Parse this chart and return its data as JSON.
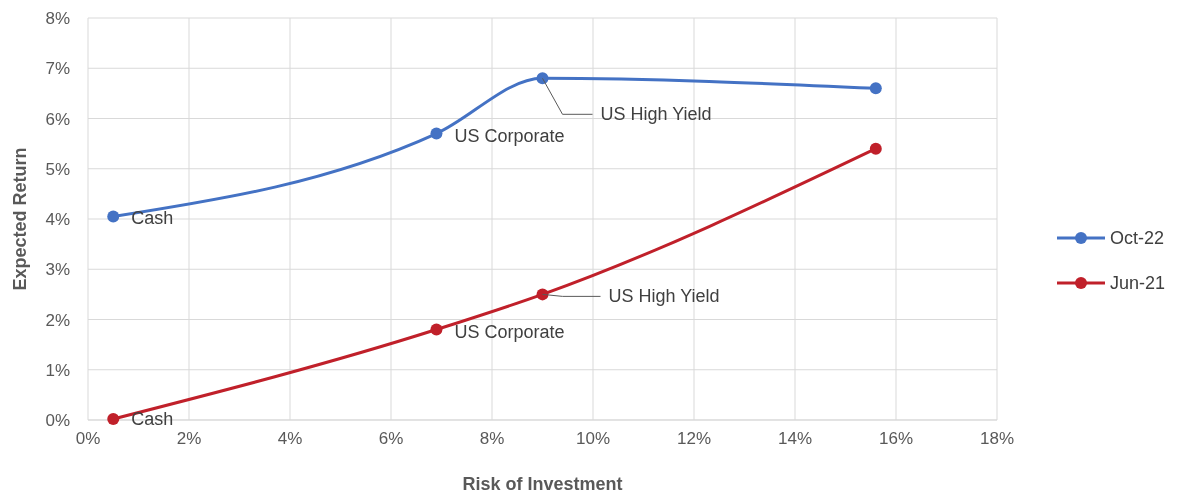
{
  "chart_data": {
    "type": "line",
    "xlabel": "Risk of Investment",
    "ylabel": "Expected Return",
    "xlim": [
      0,
      18
    ],
    "xticks": [
      {
        "value": 0,
        "label": "0%"
      },
      {
        "value": 2,
        "label": "2%"
      },
      {
        "value": 4,
        "label": "4%"
      },
      {
        "value": 6,
        "label": "6%"
      },
      {
        "value": 8,
        "label": "8%"
      },
      {
        "value": 10,
        "label": "10%"
      },
      {
        "value": 12,
        "label": "12%"
      },
      {
        "value": 14,
        "label": "14%"
      },
      {
        "value": 16,
        "label": "16%"
      },
      {
        "value": 18,
        "label": "18%"
      }
    ],
    "ylim": [
      0,
      8
    ],
    "yticks": [
      {
        "value": 0,
        "label": "0%"
      },
      {
        "value": 1,
        "label": "1%"
      },
      {
        "value": 2,
        "label": "2%"
      },
      {
        "value": 3,
        "label": "3%"
      },
      {
        "value": 4,
        "label": "4%"
      },
      {
        "value": 5,
        "label": "5%"
      },
      {
        "value": 6,
        "label": "6%"
      },
      {
        "value": 7,
        "label": "7%"
      },
      {
        "value": 8,
        "label": "8%"
      }
    ],
    "x": [
      0.5,
      6.9,
      9,
      15.6
    ],
    "series": [
      {
        "name": "Oct-22",
        "color": "#4472c4",
        "values": [
          4.05,
          5.7,
          6.8,
          6.6
        ]
      },
      {
        "name": "Jun-21",
        "color": "#c0202a",
        "values": [
          0.02,
          1.8,
          2.5,
          5.4
        ]
      }
    ],
    "annotations": [
      {
        "text": "Cash",
        "x": 0.5,
        "y": 4.05
      },
      {
        "text": "US Corporate",
        "x": 6.9,
        "y": 5.7
      },
      {
        "text": "US High Yield",
        "x": 9,
        "y": 6.8
      },
      {
        "text": "Cash",
        "x": 0.5,
        "y": 0.02
      },
      {
        "text": "US Corporate",
        "x": 6.9,
        "y": 1.8
      },
      {
        "text": "US High Yield",
        "x": 9,
        "y": 2.5
      }
    ],
    "grid": true,
    "legend": "right",
    "marker": "circle",
    "line_style": "solid"
  }
}
